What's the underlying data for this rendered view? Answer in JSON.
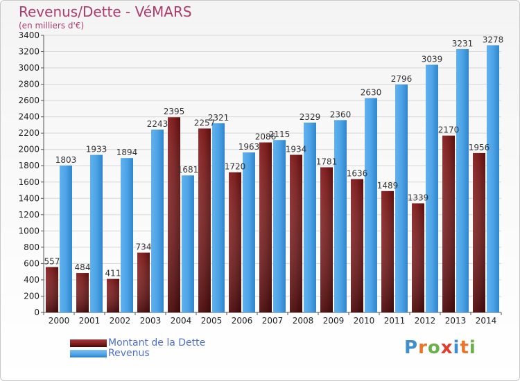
{
  "title": "Revenus/Dette - VéMARS",
  "subtitle": "(en milliers d'€)",
  "legend": {
    "debt_label": "Montant de la Dette",
    "revenue_label": "Revenus"
  },
  "logo": {
    "letters": [
      "P",
      "r",
      "o",
      "x",
      "i",
      "t",
      "i"
    ],
    "colors": [
      "#3f8fcf",
      "#e8752a",
      "#6ab04c",
      "#e13c2c",
      "#3f8fcf",
      "#e8752a",
      "#6ab04c"
    ]
  },
  "colors": {
    "debt": "#7a1e1e",
    "revenue": "#4ea3e6",
    "axis_text": "#222222"
  },
  "chart_data": {
    "type": "bar",
    "title": "Revenus/Dette - VéMARS",
    "subtitle": "(en milliers d'€)",
    "categories": [
      "2000",
      "2001",
      "2002",
      "2003",
      "2004",
      "2005",
      "2006",
      "2007",
      "2008",
      "2009",
      "2010",
      "2011",
      "2012",
      "2013",
      "2014"
    ],
    "series": [
      {
        "name": "Montant de la Dette",
        "values": [
          557,
          484,
          411,
          734,
          2395,
          2257,
          1720,
          2086,
          1934,
          1781,
          1636,
          1489,
          1339,
          2170,
          1956
        ]
      },
      {
        "name": "Revenus",
        "values": [
          1803,
          1933,
          1894,
          2243,
          1681,
          2321,
          1963,
          2115,
          2329,
          2360,
          2630,
          2796,
          3039,
          3231,
          3278
        ]
      }
    ],
    "data_labels": {
      "Montant de la Dette": [
        "557",
        "484",
        "411",
        "734",
        "2395",
        "2257",
        "1720",
        "2086",
        "1934",
        "1781",
        "1636",
        "1489",
        "1339",
        "2170",
        "1956"
      ],
      "Revenus": [
        "1803",
        "1933",
        "1894",
        "2243",
        "1681",
        "2321",
        "1963",
        "2115",
        "2329",
        "2360",
        "2630",
        "2796",
        "3039",
        "3231",
        "3278"
      ]
    },
    "yticks": [
      0,
      200,
      400,
      600,
      800,
      1000,
      1200,
      1400,
      1600,
      1800,
      2000,
      2200,
      2400,
      2600,
      2800,
      3000,
      3200,
      3400
    ],
    "ylim": [
      0,
      3400
    ],
    "xlabel": "",
    "ylabel": "",
    "grid": true,
    "legend_position": "bottom-left"
  }
}
